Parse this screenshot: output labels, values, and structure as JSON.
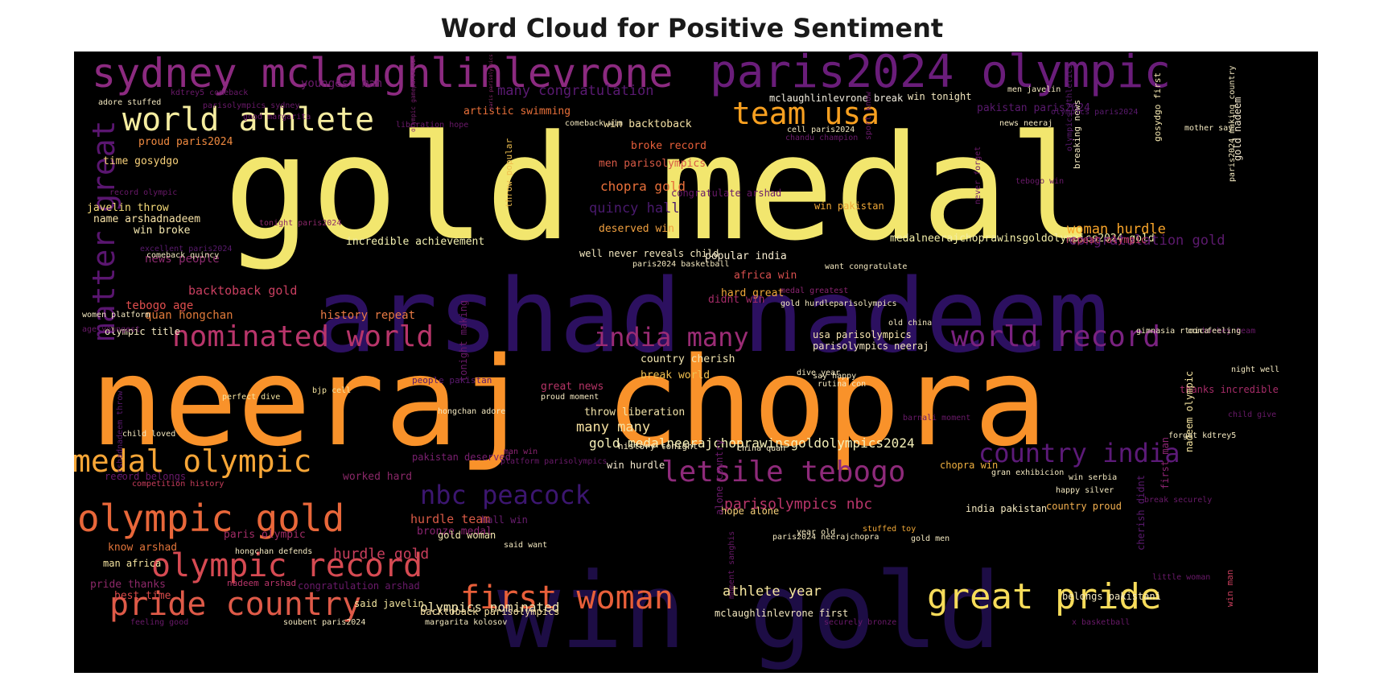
{
  "chart_data": {
    "type": "wordcloud",
    "title": "Word Cloud for Positive Sentiment",
    "background": "#000000",
    "colormap": "inferno",
    "words": [
      {
        "text": "gold medal",
        "color": "#f2e66e"
      },
      {
        "text": "neeraj chopra",
        "color": "#f9922a"
      },
      {
        "text": "arshad nadeem",
        "color": "#2c1060"
      },
      {
        "text": "win gold",
        "color": "#1d0d45"
      },
      {
        "text": "sydney mclaughlinlevrone",
        "color": "#8c2a80"
      },
      {
        "text": "paris2024 olympic",
        "color": "#6a1d7a"
      },
      {
        "text": "world athlete",
        "color": "#f5eda0"
      },
      {
        "text": "team usa",
        "color": "#f8a020"
      },
      {
        "text": "matter great",
        "color": "#5a1670"
      },
      {
        "text": "nominated world",
        "color": "#b8356a"
      },
      {
        "text": "india many",
        "color": "#9b2c75"
      },
      {
        "text": "world record",
        "color": "#7a2280"
      },
      {
        "text": "medal olympic",
        "color": "#f7a637"
      },
      {
        "text": "olympic gold",
        "color": "#e8673a"
      },
      {
        "text": "olympic record",
        "color": "#d64a52"
      },
      {
        "text": "pride country",
        "color": "#de5a48"
      },
      {
        "text": "first woman",
        "color": "#e85f3a"
      },
      {
        "text": "great pride",
        "color": "#f7dc5a"
      },
      {
        "text": "letsile tebogo",
        "color": "#8e2a7a"
      },
      {
        "text": "nbc peacock",
        "color": "#3c1670"
      },
      {
        "text": "country india",
        "color": "#5c1a78"
      },
      {
        "text": "many congratulation",
        "color": "#5a1a72"
      },
      {
        "text": "chopra gold",
        "color": "#e8703a"
      },
      {
        "text": "quincy hall",
        "color": "#4a1a6e"
      },
      {
        "text": "incredible achievement",
        "color": "#f3f0b0"
      },
      {
        "text": "medalneerajchoprawinsgoldolympics2024 gold",
        "color": "#f3eea8"
      },
      {
        "text": "gold medalneerajchoprawinsgoldolympics2024",
        "color": "#f5f0b8"
      },
      {
        "text": "woman hurdle",
        "color": "#f9a52a"
      },
      {
        "text": "congratulation gold",
        "color": "#5c1a6e"
      },
      {
        "text": "hurdle gold",
        "color": "#c83e5c"
      },
      {
        "text": "athlete year",
        "color": "#f7e7a0"
      },
      {
        "text": "parisolympics nbc",
        "color": "#b8356a"
      },
      {
        "text": "olympics nominated",
        "color": "#f3e6b0"
      },
      {
        "text": "backtoback gold",
        "color": "#c93f60"
      },
      {
        "text": "many many",
        "color": "#f5e0a0"
      },
      {
        "text": "hurdle team",
        "color": "#d85a46"
      },
      {
        "text": "throw liberation",
        "color": "#f1e2a8"
      },
      {
        "text": "country proud",
        "color": "#f3b050"
      },
      {
        "text": "great news",
        "color": "#b53466"
      },
      {
        "text": "pakistan deserved",
        "color": "#7a2070"
      },
      {
        "text": "india pakistan",
        "color": "#f3e8c0"
      },
      {
        "text": "history repeat",
        "color": "#e87a44"
      },
      {
        "text": "quan hongchan",
        "color": "#e07a3a"
      },
      {
        "text": "tebogo age",
        "color": "#e04e4e"
      },
      {
        "text": "news people",
        "color": "#8c2a6e"
      },
      {
        "text": "javelin throw",
        "color": "#f7dc7a"
      },
      {
        "text": "name arshadnadeem",
        "color": "#f7e2a6"
      },
      {
        "text": "win broke",
        "color": "#f5e8b0"
      },
      {
        "text": "time gosydgo",
        "color": "#f7d07a"
      },
      {
        "text": "proud paris2024",
        "color": "#f08a40"
      },
      {
        "text": "artistic swimming",
        "color": "#e8703a"
      },
      {
        "text": "win backtoback",
        "color": "#f5e2a6"
      },
      {
        "text": "broke record",
        "color": "#e85f3a"
      },
      {
        "text": "men parisolympics",
        "color": "#d85a46"
      },
      {
        "text": "mclaughlinlevrone break",
        "color": "#f3eee0"
      },
      {
        "text": "win tonight",
        "color": "#f3e8c0"
      },
      {
        "text": "pakistan paris2024",
        "color": "#5a1a6e"
      },
      {
        "text": "deserved win",
        "color": "#f0a040"
      },
      {
        "text": "country cherish",
        "color": "#f3e6b0"
      },
      {
        "text": "break world",
        "color": "#f0c050"
      },
      {
        "text": "hard great",
        "color": "#f0a838"
      },
      {
        "text": "africa win",
        "color": "#d84f4e"
      },
      {
        "text": "repeat olympic",
        "color": "#c8406a"
      },
      {
        "text": "usa parisolympics",
        "color": "#f5e4b0"
      },
      {
        "text": "parisolympics neeraj",
        "color": "#f3e4c0"
      },
      {
        "text": "popular india",
        "color": "#f7ecd0"
      },
      {
        "text": "youngest man",
        "color": "#6a1a6a"
      },
      {
        "text": "paris olympic",
        "color": "#a02c66"
      },
      {
        "text": "bronze medal",
        "color": "#8a2470"
      },
      {
        "text": "hall win",
        "color": "#6a1e70"
      },
      {
        "text": "worked hard",
        "color": "#8a2868"
      },
      {
        "text": "know arshad",
        "color": "#e0743a"
      },
      {
        "text": "man africa",
        "color": "#f5e4a0"
      },
      {
        "text": "pride thanks",
        "color": "#8c2868"
      },
      {
        "text": "best time",
        "color": "#d84a4a"
      },
      {
        "text": "gold woman",
        "color": "#f5e8b0"
      },
      {
        "text": "win hurdle",
        "color": "#f5ead0"
      },
      {
        "text": "hope alone",
        "color": "#f7d07a"
      },
      {
        "text": "said javelin",
        "color": "#f3e6a0"
      },
      {
        "text": "backtoback parisolympics",
        "color": "#f3dca0"
      },
      {
        "text": "mclaughlinlevrone first",
        "color": "#f3e8c0"
      },
      {
        "text": "congratulation arshad",
        "color": "#6a1a6a"
      },
      {
        "text": "belongs pakistani",
        "color": "#f3e8c0"
      },
      {
        "text": "chopra win",
        "color": "#f0b040"
      },
      {
        "text": "thanks incredible",
        "color": "#a62c68"
      },
      {
        "text": "didnt win",
        "color": "#a62c68"
      },
      {
        "text": "win pakistan",
        "color": "#f0a838"
      },
      {
        "text": "gold nadeem",
        "color": "#f5ead0"
      },
      {
        "text": "tebogo win",
        "color": "#6a1a6a"
      },
      {
        "text": "gosydgo first",
        "color": "#f3e6b0"
      },
      {
        "text": "nadeem olympic",
        "color": "#f5e4a0"
      },
      {
        "text": "win man",
        "color": "#c83e5c"
      },
      {
        "text": "first man",
        "color": "#8a2470"
      },
      {
        "text": "cherish didnt",
        "color": "#5a1a6e"
      },
      {
        "text": "alone country",
        "color": "#6a1a6a"
      },
      {
        "text": "paris parisolympics",
        "color": "#8c2a6e"
      },
      {
        "text": "olympic gameparis2024",
        "color": "#7a2070"
      },
      {
        "text": "throw popular",
        "color": "#f0c050"
      },
      {
        "text": "tonight making",
        "color": "#6a1a6a"
      },
      {
        "text": "breaking news",
        "color": "#f3e8c0"
      },
      {
        "text": "comeback quincy",
        "color": "#f3e8c0"
      },
      {
        "text": "tonight paris2024",
        "color": "#8a2868"
      },
      {
        "text": "kdtrey5 comeback",
        "color": "#6a1a6a"
      },
      {
        "text": "adore stuffed",
        "color": "#f3e8c0"
      },
      {
        "text": "liberation hope",
        "color": "#6a1a6a"
      },
      {
        "text": "people pakistan",
        "color": "#5a1a6e"
      },
      {
        "text": "record belongs",
        "color": "#6a1a6a"
      },
      {
        "text": "olympic title",
        "color": "#f3e8c0"
      },
      {
        "text": "bjp cell",
        "color": "#f5e4a0"
      },
      {
        "text": "perfect dive",
        "color": "#f5e4a0"
      },
      {
        "text": "proud moment",
        "color": "#f3e8c0"
      },
      {
        "text": "china quan",
        "color": "#f3e8c0"
      },
      {
        "text": "stuffed toy",
        "color": "#f0a838"
      },
      {
        "text": "night well",
        "color": "#f3e8c0"
      },
      {
        "text": "win serbia",
        "color": "#f3e8c0"
      },
      {
        "text": "happy silver",
        "color": "#f3e8c0"
      },
      {
        "text": "olympics paris2024",
        "color": "#5a1a6e"
      },
      {
        "text": "mother say",
        "color": "#f3e8c0"
      },
      {
        "text": "hockey team",
        "color": "#6a1a6a"
      },
      {
        "text": "forget kdtrey5",
        "color": "#f3e8c0"
      },
      {
        "text": "platform parisolympics",
        "color": "#6a1a6a"
      },
      {
        "text": "competition history",
        "color": "#c83e5c"
      },
      {
        "text": "nadeem arshad",
        "color": "#b8356a"
      },
      {
        "text": "paris2024 neerajchopra",
        "color": "#f3e8c0"
      },
      {
        "text": "gold men",
        "color": "#f3e8c0"
      },
      {
        "text": "said want",
        "color": "#f3e8c0"
      },
      {
        "text": "man win",
        "color": "#8a2470"
      },
      {
        "text": "history tonight",
        "color": "#f3e8c0"
      },
      {
        "text": "rutina con",
        "color": "#f3e8c0"
      },
      {
        "text": "dive year",
        "color": "#f3e8c0"
      },
      {
        "text": "women platform",
        "color": "#f3e8c0"
      },
      {
        "text": "age youngest",
        "color": "#6a1a6a"
      },
      {
        "text": "record olympic",
        "color": "#6a1a6a"
      },
      {
        "text": "excellent paris2024",
        "color": "#5a1a6e"
      },
      {
        "text": "olympics athletics",
        "color": "#5a1a6e"
      },
      {
        "text": "paris2024 making country",
        "color": "#f3e8c0"
      },
      {
        "text": "well never reveals child",
        "color": "#f3e8c0"
      },
      {
        "text": "paris2024 basketball",
        "color": "#f3e8c0"
      },
      {
        "text": "want congratulate",
        "color": "#f3e8c0"
      },
      {
        "text": "medal greatest",
        "color": "#8a2470"
      },
      {
        "text": "gold hurdleparisolympics",
        "color": "#f3e8c0"
      },
      {
        "text": "gimnasia rtmica",
        "color": "#f3e8c0"
      },
      {
        "text": "con feeling",
        "color": "#f3e8c0"
      },
      {
        "text": "old china",
        "color": "#f3e8c0"
      },
      {
        "text": "say happy",
        "color": "#f3e8c0"
      },
      {
        "text": "hongchan adore",
        "color": "#f3e8c0"
      },
      {
        "text": "child loved",
        "color": "#f3e8c0"
      },
      {
        "text": "arshadnadeem throw",
        "color": "#5a1a6e"
      },
      {
        "text": "congratulate arshad",
        "color": "#6a1a6a"
      },
      {
        "text": "hongchan defends",
        "color": "#f3e8c0"
      },
      {
        "text": "margarita kolosov",
        "color": "#f3e8c0"
      },
      {
        "text": "soubent paris2024",
        "color": "#f3e8c0"
      },
      {
        "text": "feeling good",
        "color": "#6a1a6a"
      },
      {
        "text": "x basketball",
        "color": "#6a1a6a"
      },
      {
        "text": "securely bronze",
        "color": "#6a1a6a"
      },
      {
        "text": "little woman",
        "color": "#6a1a6a"
      },
      {
        "text": "child give",
        "color": "#6a1a6a"
      },
      {
        "text": "gran exhibicion",
        "color": "#f3e8c0"
      },
      {
        "text": "moment sanghis",
        "color": "#6a1a6a"
      },
      {
        "text": "year old",
        "color": "#f3e8c0"
      },
      {
        "text": "cell paris2024",
        "color": "#f3e8c0"
      },
      {
        "text": "men javelin",
        "color": "#f3e8c0"
      },
      {
        "text": "news neeraj",
        "color": "#f3e8c0"
      },
      {
        "text": "comeback win",
        "color": "#f3e8c0"
      },
      {
        "text": "chandu champion",
        "color": "#6a1a6a"
      },
      {
        "text": "sport know",
        "color": "#6a1a6a"
      },
      {
        "text": "good margarita",
        "color": "#6a1a6a"
      },
      {
        "text": "never forget",
        "color": "#6a1a6a"
      },
      {
        "text": "barnali moment",
        "color": "#6a1a6a"
      },
      {
        "text": "parisolympics sydney",
        "color": "#6a1a6a"
      },
      {
        "text": "break securely",
        "color": "#6a1a6a"
      }
    ]
  }
}
